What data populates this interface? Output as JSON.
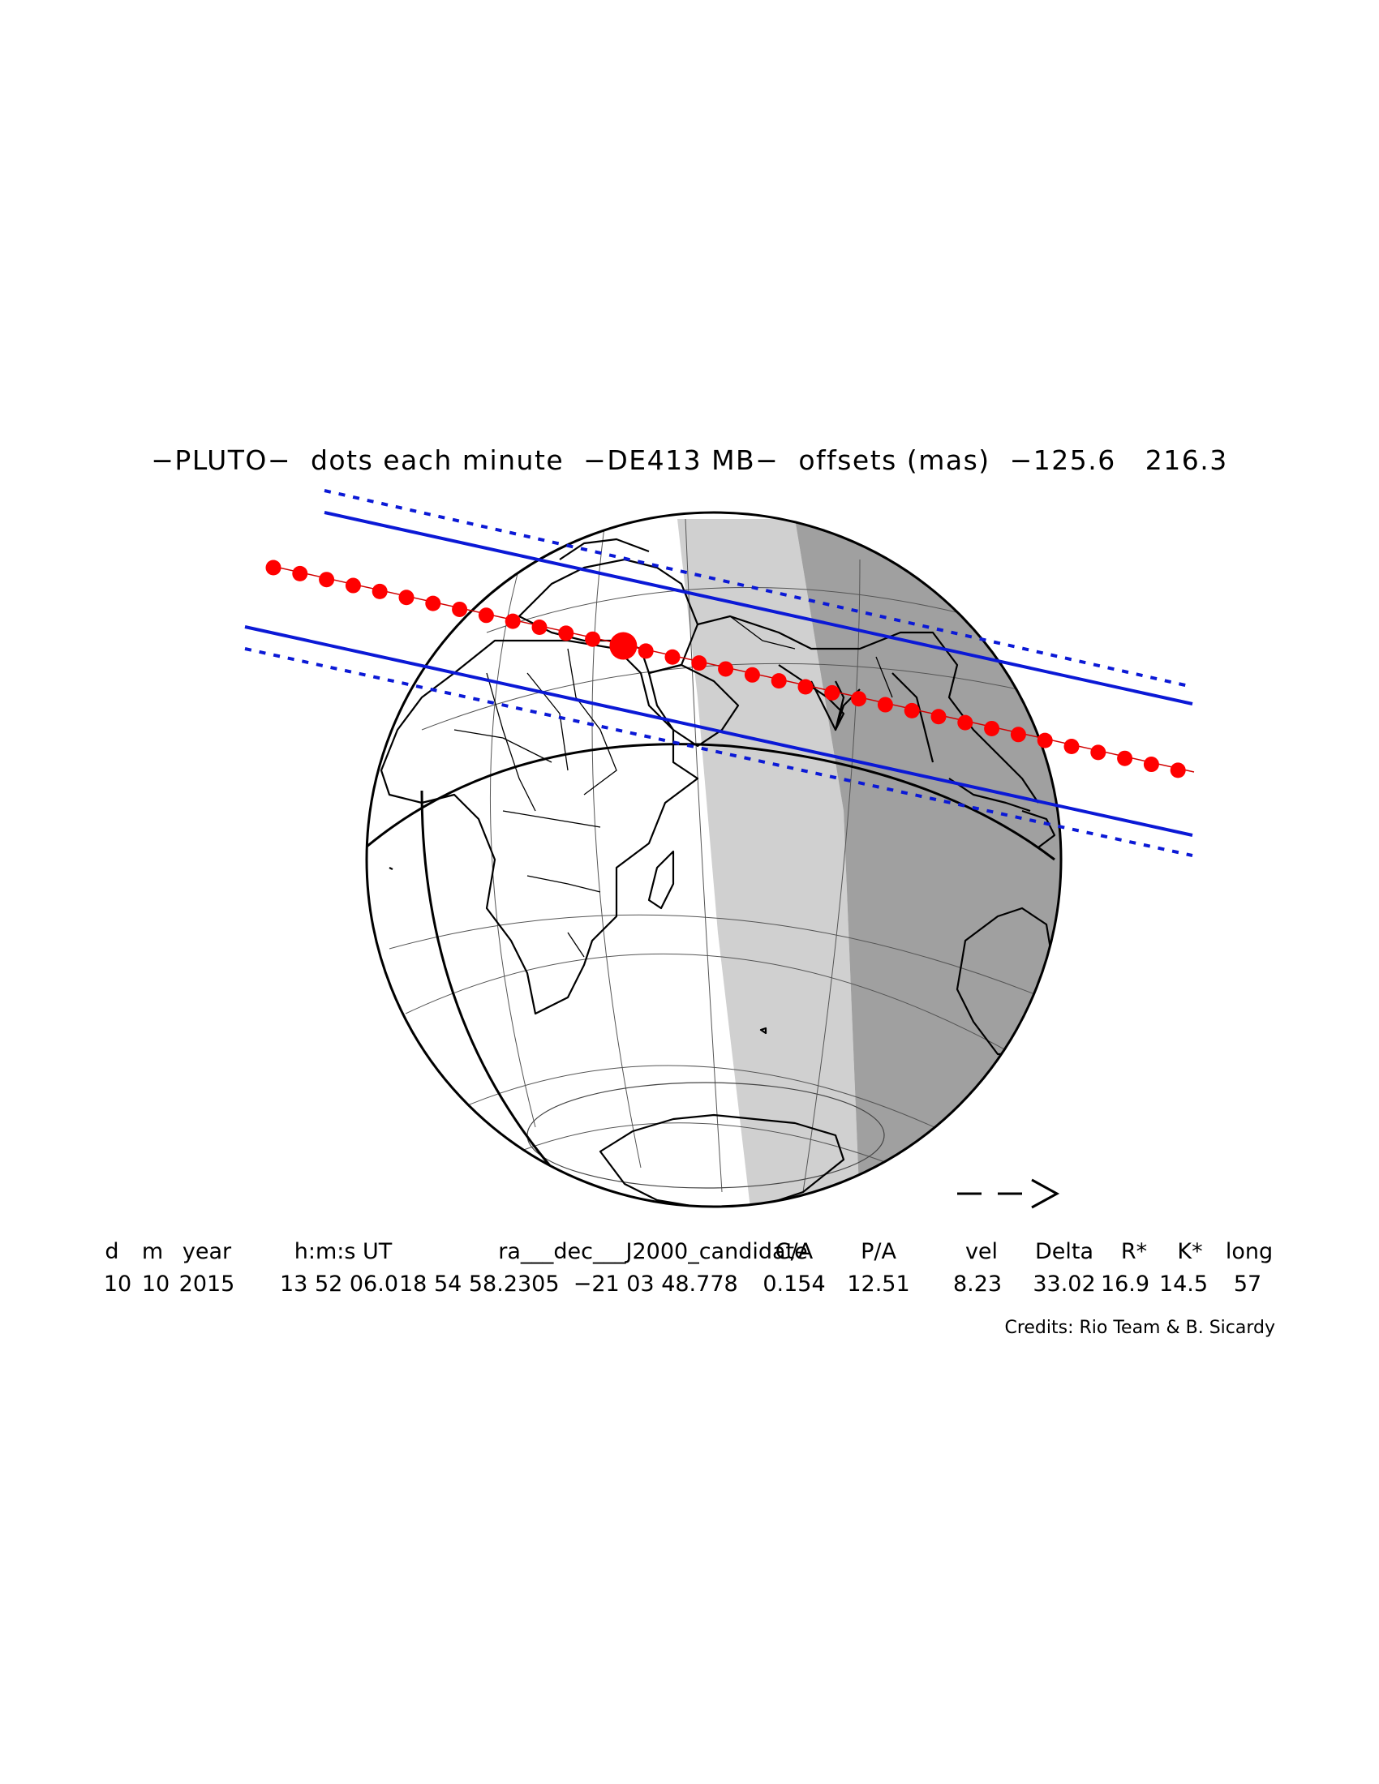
{
  "title": "−PLUTO−  dots each minute  −DE413 MB−  offsets (mas)  −125.6   216.3",
  "direction_arrow": "− −>",
  "table": {
    "headers": [
      "d",
      "m",
      "year",
      "h:m:s UT",
      "ra___dec___J2000_candidate",
      "C/A",
      "P/A",
      "vel",
      "Delta",
      "R*",
      "K*",
      "long"
    ],
    "values": [
      "10",
      "10",
      "2015",
      "13 52 06.0",
      "18 54 58.2305  −21 03 48.778",
      "0.154",
      "12.51",
      "8.23",
      "33.02",
      "16.9",
      "14.5",
      "57"
    ]
  },
  "credits": "Credits: Rio Team & B. Sicardy",
  "colors": {
    "shadow_path_line": "#0b19d6",
    "occultation_dots": "#ff0000",
    "twilight_zone": "#d0d0d0",
    "night_zone": "#a0a0a0",
    "coastlines": "#000000"
  }
}
